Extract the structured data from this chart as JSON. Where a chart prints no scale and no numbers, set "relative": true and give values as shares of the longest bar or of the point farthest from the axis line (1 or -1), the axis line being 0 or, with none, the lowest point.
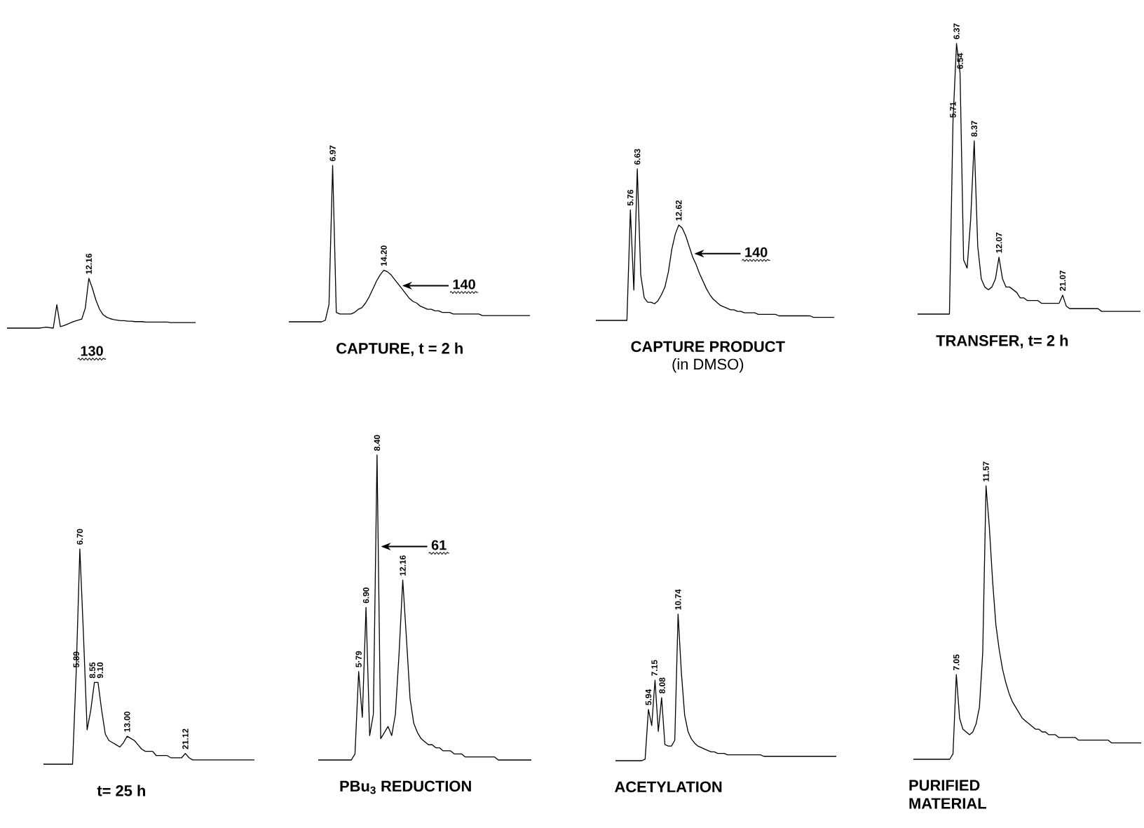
{
  "chart_data": [
    {
      "type": "line",
      "relative": true,
      "tick_labels": false,
      "color": "#000000",
      "categories": [
        null,
        null,
        null,
        null,
        null,
        null,
        null,
        null,
        null,
        null,
        null,
        null,
        null,
        null,
        null,
        null,
        null,
        null,
        null,
        null,
        null,
        null,
        null,
        null,
        null,
        null,
        null,
        null,
        null,
        null,
        null,
        null,
        null,
        null,
        null,
        null,
        null,
        null,
        null,
        null,
        null,
        null,
        null,
        null,
        null,
        null,
        null,
        null,
        null,
        null,
        null,
        null,
        null,
        null
      ],
      "values": [
        0,
        0,
        0,
        0,
        0,
        0,
        0,
        0,
        0,
        0,
        0.01,
        0.02,
        0.01,
        0,
        0.47,
        0.03,
        0.05,
        0.08,
        0.11,
        0.14,
        0.16,
        0.18,
        0.4,
        1,
        0.8,
        0.56,
        0.38,
        0.27,
        0.22,
        0.19,
        0.17,
        0.16,
        0.15,
        0.15,
        0.14,
        0.14,
        0.13,
        0.13,
        0.13,
        0.12,
        0.12,
        0.12,
        0.12,
        0.12,
        0.12,
        0.12,
        0.11,
        0.11,
        0.11,
        0.11,
        0.11,
        0.11,
        0.11,
        0.11
      ],
      "annotations": [
        {
          "text": "12.16",
          "y": 1
        },
        "130"
      ]
    },
    {
      "type": "line",
      "relative": true,
      "tick_labels": false,
      "color": "#000000",
      "title": "CAPTURE, t = 2 h",
      "categories": [
        null,
        null,
        null,
        null,
        null,
        null,
        null,
        null,
        null,
        null,
        null,
        null,
        null,
        null,
        null,
        null,
        null,
        null,
        null,
        null,
        null,
        null,
        null,
        null,
        null,
        null,
        null,
        null,
        null,
        null,
        null,
        null,
        null,
        null,
        null,
        null,
        null,
        null,
        null,
        null,
        null,
        null,
        null,
        null,
        null,
        null,
        null,
        null,
        null,
        null,
        null,
        null,
        null,
        null,
        null,
        null,
        null,
        null,
        null,
        null,
        null,
        null,
        null,
        null,
        null,
        null,
        null
      ],
      "values": [
        0,
        0,
        0,
        0,
        0,
        0,
        0,
        0,
        0,
        0,
        0.01,
        0.11,
        1,
        0.06,
        0.05,
        0.05,
        0.05,
        0.05,
        0.06,
        0.08,
        0.09,
        0.12,
        0.16,
        0.21,
        0.26,
        0.3,
        0.33,
        0.32,
        0.3,
        0.27,
        0.24,
        0.21,
        0.18,
        0.15,
        0.13,
        0.12,
        0.1,
        0.09,
        0.08,
        0.08,
        0.07,
        0.07,
        0.06,
        0.06,
        0.06,
        0.05,
        0.05,
        0.05,
        0.05,
        0.05,
        0.05,
        0.05,
        0.05,
        0.04,
        0.04,
        0.04,
        0.04,
        0.04,
        0.04,
        0.04,
        0.04,
        0.04,
        0.04,
        0.04,
        0.04,
        0.04,
        0.04
      ],
      "annotations": [
        {
          "text": "6.97",
          "y": 1
        },
        {
          "text": "14.20",
          "y": 0.33
        },
        "140"
      ]
    },
    {
      "type": "line",
      "relative": true,
      "tick_labels": false,
      "color": "#000000",
      "title": "CAPTURE PRODUCT",
      "subtitle": "(in DMSO)",
      "categories": [
        null,
        null,
        null,
        null,
        null,
        null,
        null,
        null,
        null,
        null,
        null,
        null,
        null,
        null,
        null,
        null,
        null,
        null,
        null,
        null,
        null,
        null,
        null,
        null,
        null,
        null,
        null,
        null,
        null,
        null,
        null,
        null,
        null,
        null,
        null,
        null,
        null,
        null,
        null,
        null,
        null,
        null,
        null,
        null,
        null,
        null,
        null,
        null,
        null,
        null,
        null,
        null,
        null,
        null,
        null,
        null,
        null,
        null,
        null,
        null,
        null,
        null,
        null,
        null,
        null,
        null,
        null,
        null,
        null,
        null
      ],
      "values": [
        0,
        0,
        0,
        0,
        0,
        0,
        0,
        0,
        0,
        0,
        0.73,
        0.2,
        1,
        0.3,
        0.15,
        0.12,
        0.12,
        0.11,
        0.13,
        0.17,
        0.22,
        0.32,
        0.47,
        0.57,
        0.63,
        0.61,
        0.56,
        0.49,
        0.42,
        0.37,
        0.31,
        0.26,
        0.21,
        0.17,
        0.14,
        0.12,
        0.1,
        0.09,
        0.08,
        0.07,
        0.07,
        0.06,
        0.06,
        0.05,
        0.05,
        0.05,
        0.05,
        0.04,
        0.04,
        0.04,
        0.04,
        0.04,
        0.04,
        0.03,
        0.03,
        0.03,
        0.03,
        0.03,
        0.03,
        0.03,
        0.03,
        0.03,
        0.03,
        0.02,
        0.02,
        0.02,
        0.02,
        0.02,
        0.02,
        0.02
      ],
      "annotations": [
        {
          "text": "5.76",
          "y": 0.73
        },
        {
          "text": "6.63",
          "y": 1
        },
        {
          "text": "12.62",
          "y": 0.63
        },
        "140"
      ]
    },
    {
      "type": "line",
      "relative": true,
      "tick_labels": false,
      "color": "#000000",
      "title": "TRANSFER, t= 2 h",
      "categories": [
        null,
        null,
        null,
        null,
        null,
        null,
        null,
        null,
        null,
        null,
        null,
        null,
        null,
        null,
        null,
        null,
        null,
        null,
        null,
        null,
        null,
        null,
        null,
        null,
        null,
        null,
        null,
        null,
        null,
        null,
        null,
        null,
        null,
        null,
        null,
        null,
        null,
        null,
        null,
        null,
        null,
        null,
        null,
        null,
        null,
        null,
        null,
        null,
        null,
        null,
        null,
        null,
        null,
        null,
        null,
        null,
        null,
        null,
        null,
        null,
        null,
        null,
        null,
        null
      ],
      "values": [
        0,
        0,
        0,
        0,
        0,
        0,
        0,
        0,
        0,
        0,
        0.71,
        1,
        0.89,
        0.2,
        0.17,
        0.35,
        0.64,
        0.25,
        0.13,
        0.1,
        0.09,
        0.1,
        0.13,
        0.21,
        0.13,
        0.1,
        0.1,
        0.09,
        0.08,
        0.06,
        0.06,
        0.05,
        0.05,
        0.05,
        0.05,
        0.04,
        0.04,
        0.04,
        0.04,
        0.04,
        0.04,
        0.07,
        0.03,
        0.02,
        0.02,
        0.02,
        0.02,
        0.02,
        0.02,
        0.02,
        0.02,
        0.02,
        0.01,
        0.01,
        0.01,
        0.01,
        0.01,
        0.01,
        0.01,
        0.01,
        0.01,
        0.01,
        0.01,
        0.01
      ],
      "annotations": [
        {
          "text": "5.71",
          "y": 0.71
        },
        {
          "text": "6.37",
          "y": 1
        },
        {
          "text": "6.54",
          "y": 0.89
        },
        {
          "text": "8.37",
          "y": 0.64
        },
        {
          "text": "12.07",
          "y": 0.21
        },
        {
          "text": "21.07",
          "y": 0.07
        }
      ]
    },
    {
      "type": "line",
      "relative": true,
      "tick_labels": false,
      "color": "#000000",
      "title": "t= 25 h",
      "categories": [
        null,
        null,
        null,
        null,
        null,
        null,
        null,
        null,
        null,
        null,
        null,
        null,
        null,
        null,
        null,
        null,
        null,
        null,
        null,
        null,
        null,
        null,
        null,
        null,
        null,
        null,
        null,
        null,
        null,
        null,
        null,
        null,
        null,
        null,
        null,
        null,
        null,
        null,
        null,
        null,
        null,
        null,
        null,
        null,
        null,
        null,
        null,
        null,
        null,
        null,
        null,
        null,
        null,
        null,
        null,
        null,
        null,
        null,
        null
      ],
      "values": [
        0,
        0,
        0,
        0,
        0,
        0,
        0,
        0,
        0,
        0.43,
        1,
        0.6,
        0.16,
        0.25,
        0.38,
        0.38,
        0.25,
        0.14,
        0.11,
        0.1,
        0.09,
        0.08,
        0.1,
        0.13,
        0.12,
        0.11,
        0.09,
        0.07,
        0.06,
        0.06,
        0.06,
        0.04,
        0.04,
        0.04,
        0.04,
        0.03,
        0.03,
        0.03,
        0.03,
        0.05,
        0.03,
        0.02,
        0.02,
        0.02,
        0.02,
        0.02,
        0.02,
        0.02,
        0.02,
        0.02,
        0.02,
        0.02,
        0.02,
        0.02,
        0.02,
        0.02,
        0.02,
        0.02,
        0.02
      ],
      "annotations": [
        {
          "text": "5.89",
          "y": 0.43
        },
        {
          "text": "6.70",
          "y": 1
        },
        {
          "text": "8.55",
          "y": 0.38
        },
        {
          "text": "9.10",
          "y": 0.38
        },
        {
          "text": "13.00",
          "y": 0.13
        },
        {
          "text": "21.12",
          "y": 0.05
        }
      ]
    },
    {
      "type": "line",
      "relative": true,
      "tick_labels": false,
      "color": "#000000",
      "title": "PBu$_{3}$ REDUCTION",
      "categories": [
        null,
        null,
        null,
        null,
        null,
        null,
        null,
        null,
        null,
        null,
        null,
        null,
        null,
        null,
        null,
        null,
        null,
        null,
        null,
        null,
        null,
        null,
        null,
        null,
        null,
        null,
        null,
        null,
        null,
        null,
        null,
        null,
        null,
        null,
        null,
        null,
        null,
        null,
        null,
        null,
        null,
        null,
        null,
        null,
        null,
        null,
        null,
        null,
        null,
        null,
        null,
        null,
        null,
        null,
        null,
        null,
        null,
        null,
        null
      ],
      "values": [
        0,
        0,
        0,
        0,
        0,
        0,
        0,
        0,
        0,
        0,
        0.02,
        0.29,
        0.14,
        0.5,
        0.08,
        0.15,
        1,
        0.07,
        0.09,
        0.11,
        0.08,
        0.15,
        0.35,
        0.59,
        0.4,
        0.2,
        0.12,
        0.09,
        0.07,
        0.06,
        0.05,
        0.05,
        0.04,
        0.04,
        0.03,
        0.03,
        0.03,
        0.02,
        0.02,
        0.02,
        0.01,
        0.01,
        0.01,
        0.01,
        0.01,
        0.01,
        0.01,
        0.01,
        0.01,
        0,
        0,
        0,
        0,
        0,
        0,
        0,
        0,
        0,
        0
      ],
      "annotations": [
        {
          "text": "5·79",
          "y": 0.29
        },
        {
          "text": "6.90",
          "y": 0.5
        },
        {
          "text": "8.40",
          "y": 1
        },
        "61",
        {
          "text": "12.16",
          "y": 0.59
        }
      ]
    },
    {
      "type": "line",
      "relative": true,
      "tick_labels": false,
      "color": "#000000",
      "title": "ACETYLATION",
      "categories": [
        null,
        null,
        null,
        null,
        null,
        null,
        null,
        null,
        null,
        null,
        null,
        null,
        null,
        null,
        null,
        null,
        null,
        null,
        null,
        null,
        null,
        null,
        null,
        null,
        null,
        null,
        null,
        null,
        null,
        null,
        null,
        null,
        null,
        null,
        null,
        null,
        null,
        null,
        null,
        null,
        null,
        null,
        null,
        null,
        null,
        null,
        null,
        null,
        null,
        null,
        null,
        null,
        null,
        null,
        null,
        null,
        null,
        null,
        null,
        null,
        null,
        null,
        null,
        null,
        null,
        null,
        null,
        null
      ],
      "values": [
        0,
        0,
        0,
        0,
        0,
        0,
        0,
        0,
        0,
        0.01,
        0.35,
        0.24,
        0.55,
        0.2,
        0.43,
        0.11,
        0.1,
        0.1,
        0.14,
        1,
        0.6,
        0.31,
        0.2,
        0.15,
        0.12,
        0.1,
        0.09,
        0.08,
        0.07,
        0.06,
        0.06,
        0.05,
        0.05,
        0.05,
        0.04,
        0.04,
        0.04,
        0.04,
        0.04,
        0.04,
        0.04,
        0.04,
        0.04,
        0.04,
        0.04,
        0.03,
        0.03,
        0.03,
        0.03,
        0.03,
        0.03,
        0.03,
        0.03,
        0.03,
        0.03,
        0.03,
        0.03,
        0.03,
        0.03,
        0.03,
        0.03,
        0.03,
        0.03,
        0.03,
        0.03,
        0.03,
        0.03,
        0.03
      ],
      "annotations": [
        {
          "text": "5.94",
          "y": 0.35
        },
        {
          "text": "7.15",
          "y": 0.55
        },
        {
          "text": "8.08",
          "y": 0.43
        },
        {
          "text": "10.74",
          "y": 1
        }
      ]
    },
    {
      "type": "line",
      "relative": true,
      "tick_labels": false,
      "color": "#000000",
      "title": "PURIFIED MATERIAL",
      "categories": [
        null,
        null,
        null,
        null,
        null,
        null,
        null,
        null,
        null,
        null,
        null,
        null,
        null,
        null,
        null,
        null,
        null,
        null,
        null,
        null,
        null,
        null,
        null,
        null,
        null,
        null,
        null,
        null,
        null,
        null,
        null,
        null,
        null,
        null,
        null,
        null,
        null,
        null,
        null,
        null,
        null,
        null,
        null,
        null,
        null,
        null,
        null,
        null,
        null,
        null,
        null,
        null,
        null,
        null,
        null,
        null,
        null,
        null,
        null,
        null,
        null,
        null,
        null,
        null,
        null,
        null,
        null,
        null,
        null,
        null
      ],
      "values": [
        0,
        0,
        0,
        0,
        0,
        0,
        0,
        0,
        0,
        0,
        0,
        0,
        0.02,
        0.31,
        0.15,
        0.11,
        0.1,
        0.09,
        0.1,
        0.13,
        0.19,
        0.39,
        1,
        0.85,
        0.65,
        0.49,
        0.4,
        0.33,
        0.28,
        0.24,
        0.21,
        0.19,
        0.17,
        0.15,
        0.14,
        0.13,
        0.12,
        0.11,
        0.11,
        0.1,
        0.1,
        0.09,
        0.09,
        0.09,
        0.08,
        0.08,
        0.08,
        0.08,
        0.08,
        0.08,
        0.07,
        0.07,
        0.07,
        0.07,
        0.07,
        0.07,
        0.07,
        0.07,
        0.07,
        0.07,
        0.06,
        0.06,
        0.06,
        0.06,
        0.06,
        0.06,
        0.06,
        0.06,
        0.06,
        0.06
      ],
      "annotations": [
        {
          "text": "7.05",
          "y": 0.31
        },
        {
          "text": "11.57",
          "y": 1
        }
      ]
    }
  ]
}
